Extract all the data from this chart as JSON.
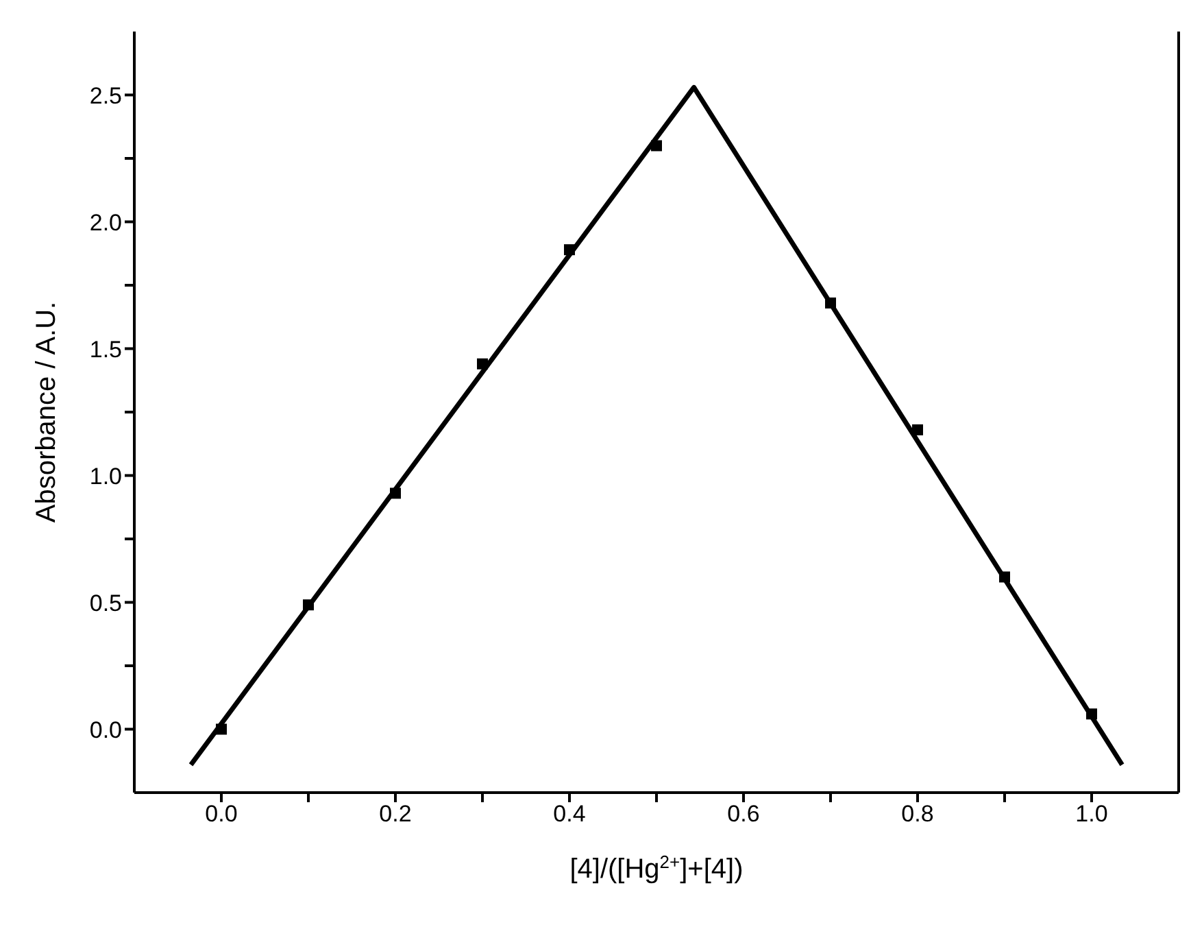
{
  "chart_data": {
    "type": "scatter",
    "xlabel": "[4]/([Hg$^{2+}$]+[4])",
    "ylabel": "Absorbance / A.U.",
    "xlim": [
      -0.1,
      1.1
    ],
    "xticks": [
      {
        "value": 0.0,
        "label": "0.0"
      },
      {
        "value": 0.1,
        "label": null
      },
      {
        "value": 0.2,
        "label": "0.2"
      },
      {
        "value": 0.3,
        "label": null
      },
      {
        "value": 0.4,
        "label": "0.4"
      },
      {
        "value": 0.5,
        "label": null
      },
      {
        "value": 0.6,
        "label": "0.6"
      },
      {
        "value": 0.7,
        "label": null
      },
      {
        "value": 0.8,
        "label": "0.8"
      },
      {
        "value": 0.9,
        "label": null
      },
      {
        "value": 1.0,
        "label": "1.0"
      }
    ],
    "ylim": [
      -0.25,
      2.75
    ],
    "yticks": [
      {
        "value": 0.0,
        "label": "0.0"
      },
      {
        "value": 0.25,
        "label": null
      },
      {
        "value": 0.5,
        "label": "0.5"
      },
      {
        "value": 0.75,
        "label": null
      },
      {
        "value": 1.0,
        "label": "1.0"
      },
      {
        "value": 1.25,
        "label": null
      },
      {
        "value": 1.5,
        "label": "1.5"
      },
      {
        "value": 1.75,
        "label": null
      },
      {
        "value": 2.0,
        "label": "2.0"
      },
      {
        "value": 2.25,
        "label": null
      },
      {
        "value": 2.5,
        "label": "2.5"
      }
    ],
    "marker": "square",
    "series": [
      {
        "color": "#000000",
        "x": [
          0.0,
          0.1,
          0.2,
          0.3,
          0.4,
          0.5,
          0.7,
          0.8,
          0.9,
          1.0
        ],
        "values": [
          0.0,
          0.49,
          0.93,
          1.44,
          1.89,
          2.3,
          1.68,
          1.18,
          0.6,
          0.06
        ]
      },
      {
        "type": "line",
        "color": "#000000",
        "line_style": "solid",
        "marker": "none",
        "x": [
          -0.035,
          0.543,
          1.035
        ],
        "values": [
          -0.14,
          2.53,
          -0.14
        ]
      }
    ]
  }
}
